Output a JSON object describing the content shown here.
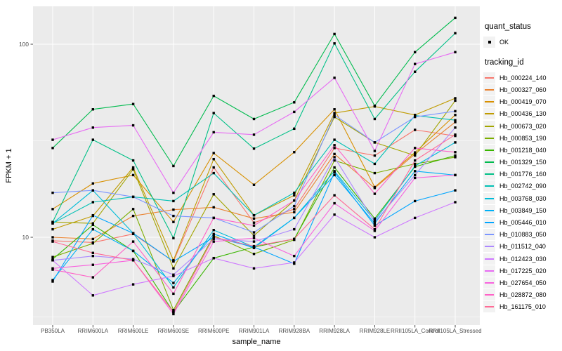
{
  "figure": {
    "background": "#FFFFFF",
    "panel_background": "#EBEBEB",
    "gridline_color": "#FFFFFF",
    "tick_label_color": "#4D4D4D",
    "axis_title_color": "#000000",
    "point_color": "#000000"
  },
  "axes": {
    "x_title": "sample_name",
    "y_title": "FPKM + 1",
    "y_tick_labels": [
      "100",
      "10"
    ],
    "y_scale": "log10"
  },
  "legend": {
    "quant_title": "quant_status",
    "quant_items": [
      {
        "label": "OK",
        "marker": "black-square-point"
      }
    ],
    "tracking_title": "tracking_id"
  },
  "chart_data": {
    "type": "line",
    "title": "",
    "xlabel": "sample_name",
    "ylabel": "FPKM + 1",
    "y_scale": "log10",
    "ylim": [
      3.5,
      157
    ],
    "y_major_gridlines": [
      10,
      100
    ],
    "y_minor_gridlines": [
      3.87,
      31.62
    ],
    "grid": true,
    "legend_position": "right",
    "point_shape": "small-black-square",
    "categories": [
      "PB350LA",
      "RRIM600LA",
      "RRIM600LE",
      "RRIM600SE",
      "RRIM600PE",
      "RRIM901LA",
      "RRIM928BA",
      "RRIM928LA",
      "RRIM928LE",
      "RRII105LA_Control",
      "RRII105LA_Stressed"
    ],
    "series": [
      {
        "name": "Hb_000224_140",
        "color": "#F8766D",
        "values": [
          9.6,
          9.4,
          10.4,
          7.5,
          23.0,
          11.9,
          14.0,
          29,
          26.5,
          36,
          33.5
        ]
      },
      {
        "name": "Hb_000327_060",
        "color": "#EA8331",
        "values": [
          10.0,
          9.8,
          12.9,
          13.9,
          14.3,
          12.5,
          13.5,
          27,
          18.0,
          27,
          39.5
        ]
      },
      {
        "name": "Hb_000419_070",
        "color": "#D89000",
        "values": [
          14.0,
          19.0,
          21.0,
          12.0,
          27.3,
          18.7,
          27.6,
          46,
          18.2,
          27.5,
          43.0
        ]
      },
      {
        "name": "Hb_000436_130",
        "color": "#C09B00",
        "values": [
          11.0,
          12.9,
          23.0,
          7.6,
          25.4,
          13.0,
          16.5,
          44,
          47.6,
          43.0,
          52.5
        ]
      },
      {
        "name": "Hb_000673_020",
        "color": "#A3A500",
        "values": [
          12.0,
          11.8,
          22.5,
          6.9,
          16.7,
          10.2,
          15.5,
          42,
          31.0,
          26.5,
          51.0
        ]
      },
      {
        "name": "Hb_000853_190",
        "color": "#7CAE00",
        "values": [
          7.9,
          9.3,
          14.0,
          4.2,
          10.2,
          8.2,
          9.7,
          25,
          21.5,
          24.0,
          26.0
        ]
      },
      {
        "name": "Hb_001218_040",
        "color": "#39B600",
        "values": [
          7.7,
          11.6,
          8.5,
          4.1,
          7.8,
          8.9,
          9.8,
          23,
          12.5,
          23.2,
          26.5
        ]
      },
      {
        "name": "Hb_001329_150",
        "color": "#00BB4E",
        "values": [
          29,
          46,
          49,
          23.4,
          54,
          41,
          50,
          113,
          48,
          91,
          137
        ]
      },
      {
        "name": "Hb_001776_160",
        "color": "#00C087",
        "values": [
          12.0,
          32,
          25,
          9.9,
          44,
          28.8,
          36.5,
          101,
          41,
          72,
          114
        ]
      },
      {
        "name": "Hb_002742_090",
        "color": "#00C0B4",
        "values": [
          11.8,
          15.2,
          16.2,
          15.4,
          21.5,
          13.0,
          17.0,
          32,
          24.0,
          42.7,
          40.4
        ]
      },
      {
        "name": "Hb_003768_030",
        "color": "#00BCD8",
        "values": [
          11.8,
          17.5,
          10.5,
          5.5,
          10.9,
          8.9,
          12.6,
          22,
          12.2,
          23.4,
          31.0
        ]
      },
      {
        "name": "Hb_003849_150",
        "color": "#00B0F6",
        "values": [
          6.0,
          11.0,
          8.5,
          5.8,
          10.4,
          8.8,
          12.6,
          21,
          11.8,
          22.0,
          21.0
        ]
      },
      {
        "name": "Hb_005446_010",
        "color": "#00A5FF",
        "values": [
          5.9,
          13.0,
          10.5,
          7.5,
          10.0,
          8.9,
          7.3,
          21.7,
          11.5,
          15.4,
          17.5
        ]
      },
      {
        "name": "Hb_010883_050",
        "color": "#7C96FF",
        "values": [
          17.0,
          17.5,
          16.2,
          12.9,
          12.6,
          10.6,
          14.5,
          43,
          31.0,
          42.0,
          45.0
        ]
      },
      {
        "name": "Hb_011512_040",
        "color": "#AC88FF",
        "values": [
          7.6,
          8.0,
          7.7,
          6.4,
          9.8,
          9.5,
          11.0,
          26,
          12.0,
          21.0,
          37.0
        ]
      },
      {
        "name": "Hb_012423_030",
        "color": "#CE78FF",
        "values": [
          7.6,
          5.0,
          5.7,
          6.3,
          7.8,
          6.9,
          7.4,
          13.1,
          10.0,
          12.6,
          15.2
        ]
      },
      {
        "name": "Hb_017225_020",
        "color": "#E76BF3",
        "values": [
          32,
          37,
          38,
          17.0,
          35,
          34,
          44.6,
          67,
          28.0,
          79,
          91
        ]
      },
      {
        "name": "Hb_027654_050",
        "color": "#F862DE",
        "values": [
          6.9,
          7.2,
          7.6,
          4.0,
          9.5,
          9.9,
          8.0,
          15,
          10.8,
          20.3,
          21.0
        ]
      },
      {
        "name": "Hb_028872_080",
        "color": "#FF61C7",
        "values": [
          6.8,
          6.2,
          9.5,
          5.1,
          12.6,
          11.5,
          15.5,
          30,
          16.8,
          29.0,
          27.6
        ]
      },
      {
        "name": "Hb_161175_010",
        "color": "#FF6B96",
        "values": [
          9.5,
          8.3,
          7.6,
          4.1,
          10.0,
          9.0,
          9.8,
          16.5,
          11.0,
          25.0,
          34.0
        ]
      }
    ]
  }
}
